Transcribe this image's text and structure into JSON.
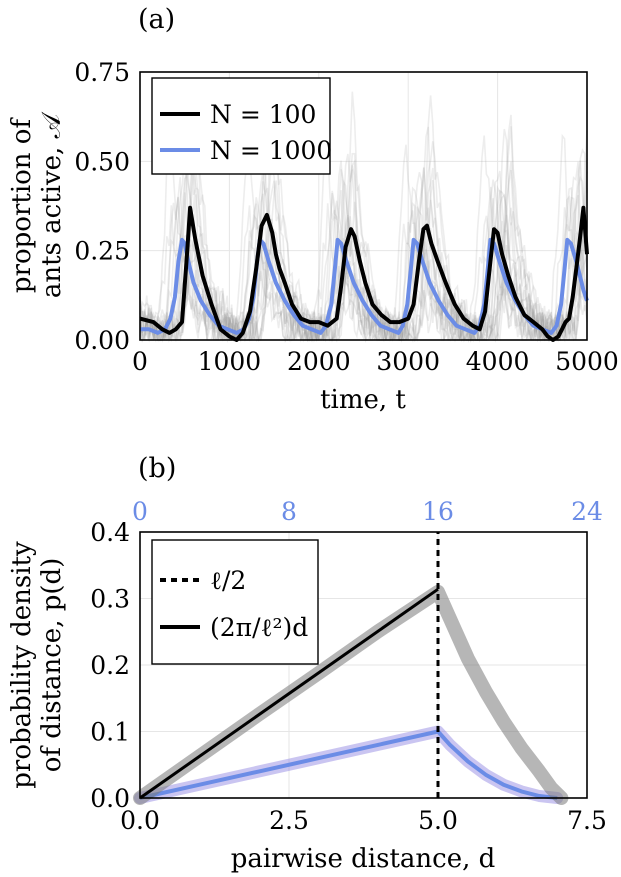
{
  "colors": {
    "black": "#000000",
    "blue": "#6b8ce6",
    "purple": "#8a7fe0",
    "gray_traces": "#9a9a9a",
    "grid": "#e6e6e6"
  },
  "chart_data": [
    {
      "panel": "(a)",
      "type": "line",
      "xlabel": "time, t",
      "ylabel_line1": "proportion of",
      "ylabel_line2": "ants active, 𝒜",
      "xlim": [
        0,
        5000
      ],
      "ylim": [
        0,
        0.75
      ],
      "xticks": [
        "0",
        "1000",
        "2000",
        "3000",
        "4000",
        "5000"
      ],
      "yticks": [
        "0.00",
        "0.25",
        "0.50",
        "0.75"
      ],
      "grid": true,
      "legend_position": "top-left",
      "series": [
        {
          "name": "N = 100",
          "color": "#000000",
          "x": [
            0,
            150,
            250,
            330,
            400,
            470,
            520,
            560,
            620,
            700,
            800,
            900,
            1000,
            1080,
            1150,
            1230,
            1300,
            1360,
            1420,
            1480,
            1520,
            1560,
            1620,
            1700,
            1800,
            1900,
            2000,
            2100,
            2200,
            2250,
            2300,
            2360,
            2400,
            2460,
            2520,
            2600,
            2700,
            2800,
            2900,
            3000,
            3060,
            3120,
            3170,
            3210,
            3260,
            3330,
            3420,
            3520,
            3620,
            3720,
            3800,
            3860,
            3920,
            3960,
            4000,
            4050,
            4120,
            4200,
            4300,
            4400,
            4500,
            4560,
            4620,
            4680,
            4720,
            4760,
            4800,
            4840,
            4880,
            4920,
            4960,
            5000
          ],
          "y": [
            0.06,
            0.05,
            0.03,
            0.02,
            0.03,
            0.05,
            0.22,
            0.37,
            0.28,
            0.18,
            0.1,
            0.03,
            0.01,
            0.0,
            0.02,
            0.08,
            0.2,
            0.32,
            0.35,
            0.3,
            0.24,
            0.2,
            0.16,
            0.1,
            0.06,
            0.05,
            0.05,
            0.04,
            0.06,
            0.15,
            0.26,
            0.31,
            0.29,
            0.22,
            0.16,
            0.1,
            0.07,
            0.05,
            0.05,
            0.06,
            0.1,
            0.22,
            0.31,
            0.32,
            0.27,
            0.22,
            0.16,
            0.1,
            0.06,
            0.04,
            0.03,
            0.08,
            0.22,
            0.31,
            0.3,
            0.24,
            0.18,
            0.12,
            0.07,
            0.05,
            0.03,
            0.01,
            0.0,
            0.01,
            0.03,
            0.05,
            0.06,
            0.12,
            0.2,
            0.28,
            0.37,
            0.24
          ]
        },
        {
          "name": "N = 1000",
          "color": "#6b8ce6",
          "x": [
            0,
            100,
            200,
            280,
            340,
            390,
            430,
            470,
            500,
            540,
            600,
            680,
            780,
            880,
            980,
            1080,
            1160,
            1220,
            1270,
            1310,
            1340,
            1380,
            1440,
            1520,
            1620,
            1720,
            1820,
            1920,
            2020,
            2080,
            2140,
            2180,
            2210,
            2250,
            2310,
            2390,
            2490,
            2590,
            2690,
            2790,
            2890,
            2940,
            2990,
            3030,
            3060,
            3100,
            3160,
            3240,
            3340,
            3440,
            3540,
            3640,
            3740,
            3800,
            3850,
            3890,
            3920,
            3960,
            4020,
            4100,
            4200,
            4300,
            4400,
            4500,
            4600,
            4660,
            4710,
            4750,
            4780,
            4820,
            4880,
            4960,
            5000
          ],
          "y": [
            0.03,
            0.03,
            0.02,
            0.03,
            0.06,
            0.12,
            0.22,
            0.28,
            0.27,
            0.22,
            0.16,
            0.11,
            0.07,
            0.04,
            0.03,
            0.02,
            0.03,
            0.06,
            0.12,
            0.22,
            0.28,
            0.27,
            0.22,
            0.16,
            0.11,
            0.07,
            0.04,
            0.03,
            0.02,
            0.04,
            0.1,
            0.2,
            0.28,
            0.27,
            0.22,
            0.16,
            0.11,
            0.07,
            0.04,
            0.03,
            0.02,
            0.04,
            0.1,
            0.2,
            0.28,
            0.27,
            0.22,
            0.16,
            0.11,
            0.07,
            0.04,
            0.03,
            0.02,
            0.04,
            0.1,
            0.2,
            0.28,
            0.27,
            0.22,
            0.16,
            0.11,
            0.07,
            0.04,
            0.03,
            0.02,
            0.04,
            0.1,
            0.2,
            0.28,
            0.27,
            0.22,
            0.14,
            0.11
          ]
        }
      ]
    },
    {
      "panel": "(b)",
      "type": "line",
      "xlabel": "pairwise distance, d",
      "ylabel_line1": "probability density",
      "ylabel_line2": "of distance, p(d)",
      "xlim": [
        0,
        7.5
      ],
      "ylim": [
        0,
        0.4
      ],
      "xticks": [
        "0.0",
        "2.5",
        "5.0",
        "7.5"
      ],
      "yticks": [
        "0.0",
        "0.1",
        "0.2",
        "0.3",
        "0.4"
      ],
      "top_xticks": [
        "0",
        "8",
        "16",
        "24"
      ],
      "top_xlim": [
        0,
        24
      ],
      "grid": true,
      "legend_position": "top-left",
      "series": [
        {
          "name": "ℓ/2",
          "style": "dashed",
          "x": [
            5.0,
            5.0
          ],
          "y": [
            0.0,
            0.4
          ]
        },
        {
          "name": "(2π/ℓ²)d",
          "style": "solid",
          "x": [
            0.0,
            5.0
          ],
          "y": [
            0.0,
            0.314
          ]
        },
        {
          "name": "",
          "style": "scatter-gray",
          "x": [
            0.0,
            1.0,
            2.0,
            3.0,
            4.0,
            5.0,
            5.1,
            5.3,
            5.5,
            5.8,
            6.1,
            6.4,
            6.7,
            6.9,
            7.07
          ],
          "y": [
            0.0,
            0.063,
            0.126,
            0.188,
            0.251,
            0.31,
            0.29,
            0.25,
            0.21,
            0.16,
            0.115,
            0.075,
            0.04,
            0.015,
            0.0
          ]
        },
        {
          "name": "",
          "style": "band-blue",
          "x": [
            0.0,
            1.0,
            2.0,
            3.0,
            4.0,
            5.0,
            5.2,
            5.5,
            5.8,
            6.1,
            6.4,
            6.7,
            7.0
          ],
          "y": [
            0.0,
            0.02,
            0.04,
            0.06,
            0.08,
            0.1,
            0.08,
            0.055,
            0.035,
            0.02,
            0.01,
            0.003,
            0.0
          ]
        }
      ]
    }
  ]
}
